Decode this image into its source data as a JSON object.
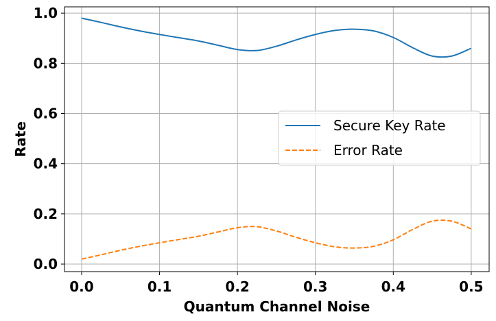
{
  "chart_data": {
    "type": "line",
    "title": "",
    "xlabel": "Quantum Channel Noise",
    "ylabel": "Rate",
    "xlim": [
      -0.022,
      0.523
    ],
    "ylim": [
      -0.03,
      1.025
    ],
    "xticks": [
      0.0,
      0.1,
      0.2,
      0.3,
      0.4,
      0.5
    ],
    "xtick_labels": [
      "0.0",
      "0.1",
      "0.2",
      "0.3",
      "0.4",
      "0.5"
    ],
    "yticks": [
      0.0,
      0.2,
      0.4,
      0.6,
      0.8,
      1.0
    ],
    "ytick_labels": [
      "0.0",
      "0.2",
      "0.4",
      "0.6",
      "0.8",
      "1.0"
    ],
    "grid": true,
    "legend_position": "center-right",
    "x": [
      0.0,
      0.025,
      0.05,
      0.075,
      0.1,
      0.125,
      0.15,
      0.175,
      0.2,
      0.225,
      0.25,
      0.275,
      0.3,
      0.325,
      0.35,
      0.375,
      0.4,
      0.425,
      0.45,
      0.475,
      0.5
    ],
    "series": [
      {
        "name": "Secure Key Rate",
        "color": "#1f77b4",
        "style": "solid",
        "values": [
          0.98,
          0.963,
          0.945,
          0.929,
          0.915,
          0.902,
          0.889,
          0.872,
          0.855,
          0.851,
          0.868,
          0.893,
          0.915,
          0.931,
          0.936,
          0.929,
          0.903,
          0.862,
          0.829,
          0.829,
          0.86
        ]
      },
      {
        "name": "Error Rate",
        "color": "#ff7f0e",
        "style": "dashed",
        "values": [
          0.02,
          0.037,
          0.055,
          0.071,
          0.085,
          0.098,
          0.111,
          0.128,
          0.145,
          0.149,
          0.132,
          0.107,
          0.085,
          0.069,
          0.064,
          0.071,
          0.097,
          0.138,
          0.171,
          0.171,
          0.14
        ]
      }
    ]
  }
}
